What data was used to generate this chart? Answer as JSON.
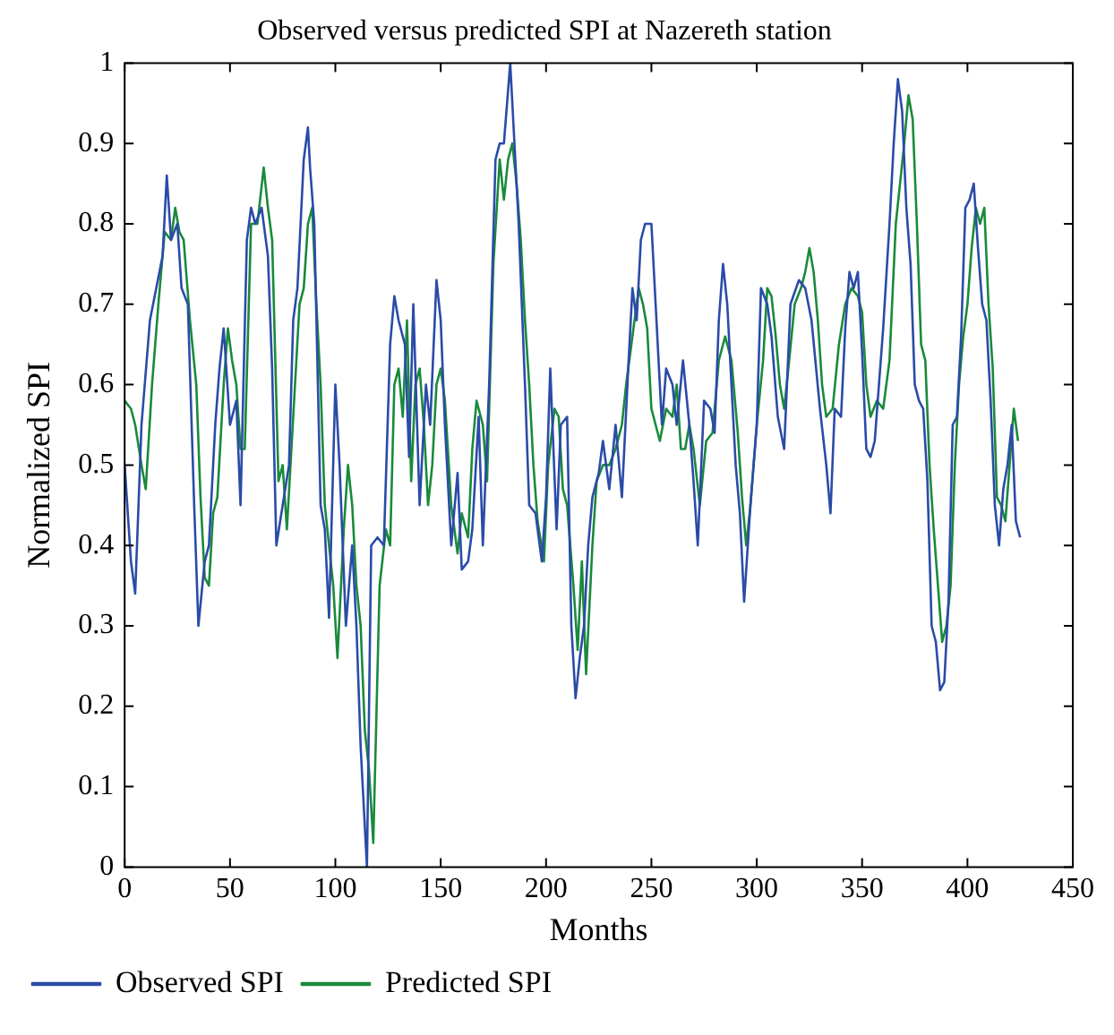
{
  "chart_data": {
    "type": "line",
    "title": "Observed versus predicted SPI at Nazereth station",
    "xlabel": "Months",
    "ylabel": "Normalized SPI",
    "xlim": [
      0,
      450
    ],
    "xticks": [
      0,
      50,
      100,
      150,
      200,
      250,
      300,
      350,
      400,
      450
    ],
    "ylim": [
      0,
      1
    ],
    "yticks": [
      0,
      0.1,
      0.2,
      0.3,
      0.4,
      0.5,
      0.6,
      0.7,
      0.8,
      0.9,
      1
    ],
    "grid": false,
    "legend": "bottom left",
    "marker": "none",
    "line_style": "solid",
    "series": [
      {
        "name": "Observed SPI",
        "color": "#2b4ba8",
        "x": [
          0,
          3,
          5,
          8,
          12,
          15,
          18,
          20,
          22,
          25,
          27,
          30,
          33,
          35,
          38,
          40,
          43,
          45,
          47,
          50,
          53,
          55,
          58,
          60,
          62,
          65,
          68,
          70,
          72,
          75,
          78,
          80,
          82,
          85,
          87,
          88,
          90,
          93,
          95,
          97,
          100,
          102,
          105,
          108,
          110,
          112,
          115,
          117,
          120,
          123,
          126,
          128,
          130,
          133,
          135,
          137,
          140,
          143,
          145,
          148,
          150,
          152,
          155,
          158,
          160,
          163,
          165,
          168,
          170,
          173,
          176,
          178,
          180,
          183,
          185,
          187,
          190,
          192,
          195,
          198,
          200,
          202,
          205,
          207,
          210,
          212,
          214,
          216,
          218,
          220,
          222,
          225,
          227,
          230,
          233,
          236,
          239,
          241,
          243,
          245,
          247,
          250,
          252,
          255,
          257,
          260,
          262,
          265,
          268,
          270,
          272,
          275,
          278,
          280,
          282,
          284,
          286,
          288,
          290,
          292,
          294,
          297,
          300,
          302,
          305,
          307,
          310,
          313,
          316,
          320,
          323,
          326,
          330,
          333,
          335,
          337,
          340,
          342,
          344,
          346,
          348,
          350,
          352,
          354,
          356,
          360,
          363,
          365,
          367,
          369,
          371,
          373,
          375,
          377,
          379,
          381,
          383,
          385,
          387,
          389,
          391,
          393,
          395,
          397,
          399,
          401,
          403,
          405,
          407,
          409,
          411,
          413,
          415,
          417,
          419,
          421,
          423,
          425
        ],
        "values": [
          0.5,
          0.38,
          0.34,
          0.55,
          0.68,
          0.72,
          0.76,
          0.86,
          0.78,
          0.8,
          0.72,
          0.7,
          0.45,
          0.3,
          0.38,
          0.4,
          0.55,
          0.62,
          0.67,
          0.55,
          0.58,
          0.45,
          0.78,
          0.82,
          0.8,
          0.82,
          0.76,
          0.62,
          0.4,
          0.45,
          0.5,
          0.68,
          0.72,
          0.88,
          0.92,
          0.87,
          0.8,
          0.45,
          0.42,
          0.31,
          0.6,
          0.5,
          0.3,
          0.4,
          0.3,
          0.15,
          0.0,
          0.4,
          0.41,
          0.4,
          0.65,
          0.71,
          0.68,
          0.65,
          0.51,
          0.7,
          0.45,
          0.6,
          0.55,
          0.73,
          0.68,
          0.55,
          0.4,
          0.49,
          0.37,
          0.38,
          0.42,
          0.56,
          0.4,
          0.6,
          0.88,
          0.9,
          0.9,
          1.0,
          0.9,
          0.8,
          0.6,
          0.45,
          0.44,
          0.38,
          0.46,
          0.62,
          0.42,
          0.55,
          0.56,
          0.3,
          0.21,
          0.26,
          0.3,
          0.4,
          0.46,
          0.49,
          0.53,
          0.47,
          0.55,
          0.46,
          0.62,
          0.72,
          0.68,
          0.78,
          0.8,
          0.8,
          0.7,
          0.55,
          0.62,
          0.6,
          0.55,
          0.63,
          0.55,
          0.48,
          0.4,
          0.58,
          0.57,
          0.54,
          0.68,
          0.75,
          0.7,
          0.6,
          0.5,
          0.44,
          0.33,
          0.45,
          0.55,
          0.72,
          0.7,
          0.66,
          0.56,
          0.52,
          0.7,
          0.73,
          0.72,
          0.68,
          0.57,
          0.5,
          0.44,
          0.57,
          0.56,
          0.67,
          0.74,
          0.72,
          0.74,
          0.64,
          0.52,
          0.51,
          0.53,
          0.67,
          0.8,
          0.9,
          0.98,
          0.94,
          0.82,
          0.75,
          0.6,
          0.58,
          0.57,
          0.48,
          0.3,
          0.28,
          0.22,
          0.23,
          0.33,
          0.55,
          0.56,
          0.66,
          0.82,
          0.83,
          0.85,
          0.77,
          0.7,
          0.68,
          0.58,
          0.45,
          0.4,
          0.47,
          0.5,
          0.55,
          0.43,
          0.41
        ]
      },
      {
        "name": "Predicted SPI",
        "color": "#1a8a3c",
        "x": [
          0,
          3,
          5,
          8,
          10,
          13,
          16,
          19,
          22,
          24,
          26,
          28,
          31,
          34,
          36,
          38,
          40,
          42,
          44,
          47,
          49,
          51,
          53,
          55,
          57,
          60,
          63,
          66,
          68,
          70,
          73,
          75,
          77,
          80,
          83,
          85,
          87,
          89,
          91,
          93,
          95,
          97,
          99,
          101,
          104,
          106,
          108,
          110,
          112,
          114,
          116,
          118,
          121,
          124,
          126,
          128,
          130,
          132,
          134,
          136,
          138,
          140,
          142,
          144,
          146,
          148,
          150,
          152,
          155,
          158,
          160,
          163,
          165,
          167,
          170,
          172,
          175,
          178,
          180,
          182,
          184,
          186,
          188,
          190,
          192,
          194,
          196,
          199,
          201,
          204,
          206,
          208,
          210,
          213,
          215,
          217,
          219,
          222,
          224,
          227,
          230,
          233,
          236,
          238,
          241,
          244,
          246,
          248,
          250,
          252,
          254,
          257,
          260,
          262,
          264,
          266,
          268,
          270,
          273,
          276,
          279,
          282,
          285,
          288,
          291,
          293,
          295,
          297,
          300,
          303,
          305,
          307,
          309,
          311,
          313,
          315,
          318,
          321,
          323,
          325,
          327,
          329,
          331,
          333,
          336,
          339,
          342,
          345,
          348,
          350,
          352,
          354,
          357,
          360,
          363,
          366,
          368,
          370,
          372,
          374,
          376,
          378,
          380,
          382,
          384,
          386,
          388,
          390,
          392,
          394,
          396,
          398,
          400,
          402,
          404,
          406,
          408,
          410,
          412,
          414,
          416,
          418,
          420,
          422,
          424
        ],
        "values": [
          0.58,
          0.57,
          0.55,
          0.5,
          0.47,
          0.6,
          0.7,
          0.79,
          0.78,
          0.82,
          0.79,
          0.78,
          0.68,
          0.6,
          0.46,
          0.36,
          0.35,
          0.44,
          0.46,
          0.6,
          0.67,
          0.63,
          0.6,
          0.52,
          0.52,
          0.8,
          0.8,
          0.87,
          0.82,
          0.78,
          0.48,
          0.5,
          0.42,
          0.56,
          0.7,
          0.72,
          0.8,
          0.82,
          0.7,
          0.6,
          0.45,
          0.4,
          0.35,
          0.26,
          0.42,
          0.5,
          0.45,
          0.35,
          0.3,
          0.17,
          0.12,
          0.03,
          0.35,
          0.42,
          0.4,
          0.6,
          0.62,
          0.56,
          0.68,
          0.48,
          0.6,
          0.62,
          0.55,
          0.45,
          0.5,
          0.6,
          0.62,
          0.58,
          0.45,
          0.39,
          0.44,
          0.41,
          0.52,
          0.58,
          0.55,
          0.48,
          0.75,
          0.88,
          0.83,
          0.88,
          0.9,
          0.85,
          0.78,
          0.68,
          0.6,
          0.5,
          0.43,
          0.38,
          0.5,
          0.57,
          0.56,
          0.47,
          0.45,
          0.35,
          0.27,
          0.38,
          0.24,
          0.4,
          0.48,
          0.5,
          0.5,
          0.52,
          0.55,
          0.6,
          0.66,
          0.72,
          0.7,
          0.67,
          0.57,
          0.55,
          0.53,
          0.57,
          0.56,
          0.6,
          0.52,
          0.52,
          0.55,
          0.52,
          0.45,
          0.53,
          0.54,
          0.63,
          0.66,
          0.63,
          0.54,
          0.46,
          0.4,
          0.45,
          0.55,
          0.63,
          0.72,
          0.71,
          0.66,
          0.6,
          0.57,
          0.62,
          0.7,
          0.72,
          0.74,
          0.77,
          0.74,
          0.68,
          0.6,
          0.56,
          0.57,
          0.65,
          0.7,
          0.72,
          0.71,
          0.69,
          0.6,
          0.56,
          0.58,
          0.57,
          0.63,
          0.8,
          0.85,
          0.9,
          0.96,
          0.93,
          0.8,
          0.65,
          0.63,
          0.5,
          0.42,
          0.35,
          0.28,
          0.3,
          0.35,
          0.5,
          0.6,
          0.66,
          0.7,
          0.77,
          0.82,
          0.8,
          0.82,
          0.7,
          0.62,
          0.46,
          0.45,
          0.43,
          0.5,
          0.57,
          0.53
        ]
      }
    ]
  }
}
